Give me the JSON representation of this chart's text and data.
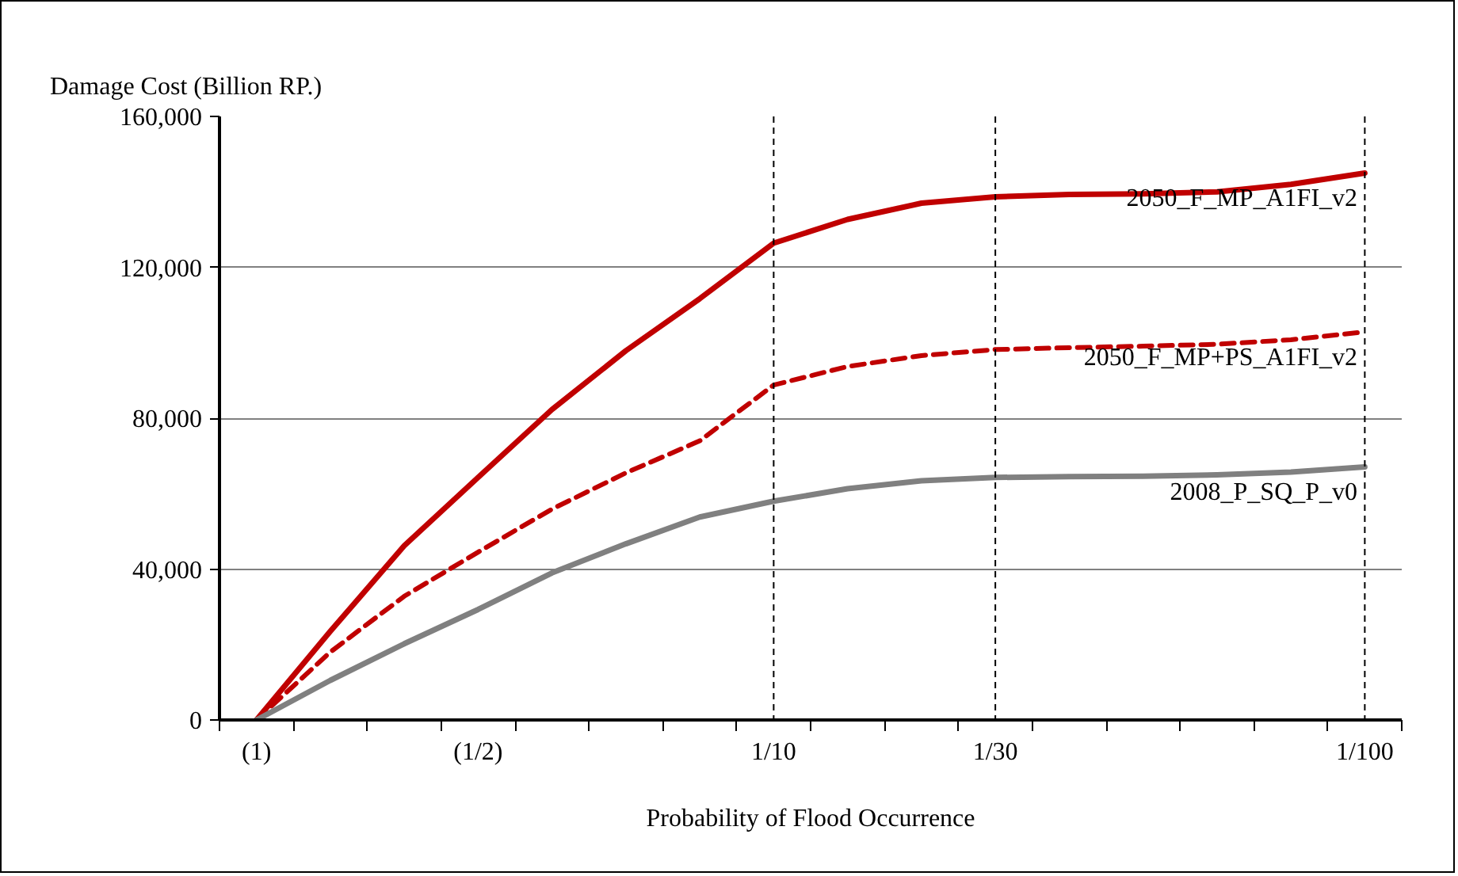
{
  "chart_data": {
    "type": "line",
    "xlabel": "Probability of Flood Occurrence",
    "ylabel": "Damage Cost (Billion RP.)",
    "categories": [
      "(1)",
      null,
      null,
      "(1/2)",
      null,
      null,
      null,
      "1/10",
      null,
      null,
      "1/30",
      null,
      null,
      null,
      null,
      "1/100"
    ],
    "ylim": [
      0,
      160000
    ],
    "yticks": [
      {
        "value": 0,
        "label": "0"
      },
      {
        "value": 40000,
        "label": "40,000"
      },
      {
        "value": 80000,
        "label": "80,000"
      },
      {
        "value": 120000,
        "label": "120,000"
      },
      {
        "value": 160000,
        "label": "160,000"
      }
    ],
    "grid": "y",
    "series": [
      {
        "name": "2050_F_MP_A1FI_v2",
        "color": "#c00000",
        "line_style": "solid",
        "values": [
          0,
          23500,
          46200,
          64300,
          82300,
          97900,
          111700,
          126400,
          132700,
          137000,
          138700,
          139300,
          139500,
          140000,
          142000,
          145000
        ]
      },
      {
        "name": "2050_F_MP+PS_A1FI_v2",
        "color": "#c00000",
        "line_style": "dashed",
        "values": [
          0,
          18000,
          32800,
          44500,
          55900,
          65500,
          74000,
          88800,
          93700,
          96600,
          98200,
          98700,
          99100,
          99600,
          100800,
          102900
        ]
      },
      {
        "name": "2008_P_SQ_P_v0",
        "color": "#808080",
        "line_style": "solid",
        "values": [
          0,
          10500,
          20200,
          29300,
          39000,
          46700,
          53800,
          58000,
          61300,
          63400,
          64300,
          64500,
          64600,
          65000,
          65700,
          67100
        ]
      }
    ],
    "ref_lines": [
      {
        "axis": "x",
        "value": "1/10",
        "color": "#000000",
        "line_style": "dashed"
      },
      {
        "axis": "x",
        "value": "1/30",
        "color": "#000000",
        "line_style": "dashed"
      },
      {
        "axis": "x",
        "value": "1/100",
        "color": "#000000",
        "line_style": "dashed"
      }
    ]
  }
}
